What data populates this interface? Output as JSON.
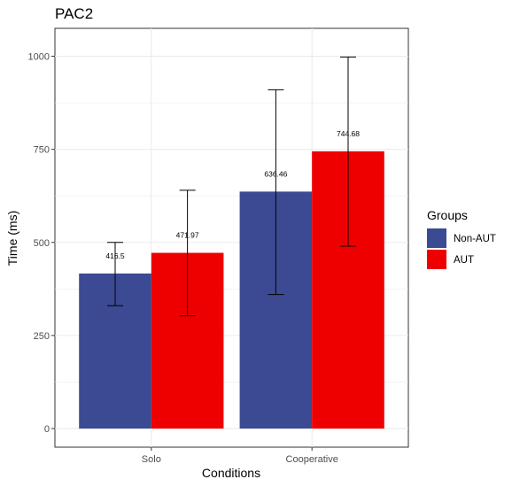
{
  "chart_data": {
    "type": "bar",
    "title": "PAC2",
    "xlabel": "Conditions",
    "ylabel": "Time (ms)",
    "categories": [
      "Solo",
      "Cooperative"
    ],
    "ylim": [
      -50,
      1075
    ],
    "yticks": [
      0,
      250,
      500,
      750,
      1000
    ],
    "grid": true,
    "legend": {
      "title": "Groups",
      "position": "right"
    },
    "series": [
      {
        "name": "Non-AUT",
        "color": "#3b4a92",
        "values": [
          416.5,
          636.46
        ],
        "labels": [
          "416.5",
          "636.46"
        ],
        "error_low": [
          330,
          360
        ],
        "error_high": [
          500,
          910
        ]
      },
      {
        "name": "AUT",
        "color": "#ee0000",
        "values": [
          471.97,
          744.68
        ],
        "labels": [
          "471.97",
          "744.68"
        ],
        "error_low": [
          303,
          490
        ],
        "error_high": [
          640,
          998
        ]
      }
    ]
  }
}
